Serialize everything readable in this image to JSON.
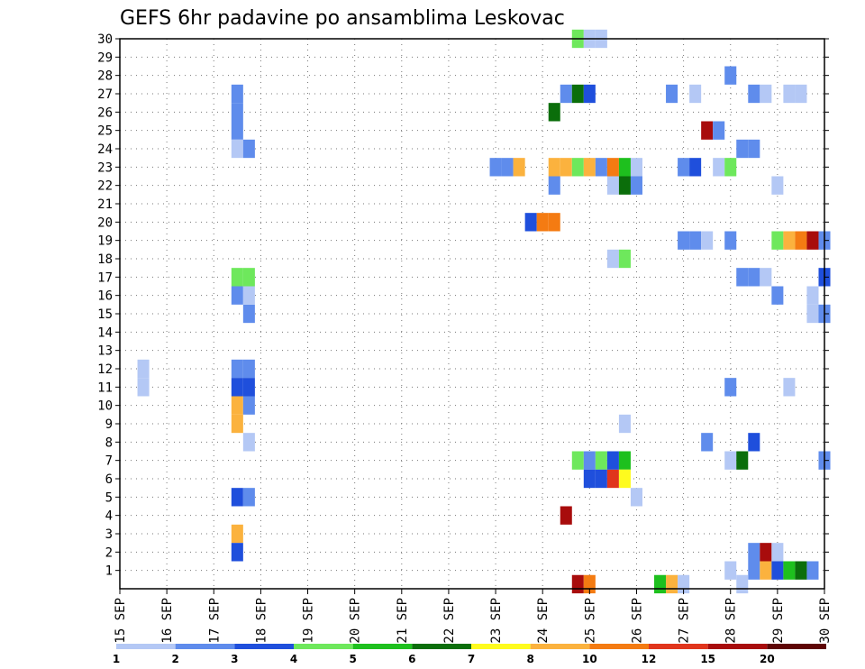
{
  "chart_data": {
    "type": "heatmap",
    "title": "GEFS 6hr padavine po ansamblima Leskovac",
    "xlabel": "",
    "ylabel": "",
    "x_tick_labels": [
      "15 SEP",
      "16 SEP",
      "17 SEP",
      "18 SEP",
      "19 SEP",
      "20 SEP",
      "21 SEP",
      "22 SEP",
      "23 SEP",
      "24 SEP",
      "25 SEP",
      "26 SEP",
      "27 SEP",
      "28 SEP",
      "29 SEP",
      "30 SEP"
    ],
    "y_tick_labels": [
      "1",
      "2",
      "3",
      "4",
      "5",
      "6",
      "7",
      "8",
      "9",
      "10",
      "11",
      "12",
      "13",
      "14",
      "15",
      "16",
      "17",
      "18",
      "19",
      "20",
      "21",
      "22",
      "23",
      "24",
      "25",
      "26",
      "27",
      "28",
      "29",
      "30"
    ],
    "xlim_days": [
      0,
      15
    ],
    "ylim": [
      0,
      30
    ],
    "grid": true,
    "legend": {
      "placement": "bottom",
      "colors": [
        "#b4c8f5",
        "#5f8cec",
        "#1f4fdc",
        "#6ee85c",
        "#1ec01e",
        "#0b6e0b",
        "#fefb1e",
        "#fbb23e",
        "#f47b12",
        "#e0351c",
        "#a80c0c",
        "#5e0505"
      ],
      "labels": [
        "1",
        "2",
        "3",
        "4",
        "5",
        "6",
        "7",
        "8",
        "10",
        "12",
        "15",
        "20"
      ]
    },
    "cells": [
      [
        0.5,
        12,
        0
      ],
      [
        0.5,
        11,
        0
      ],
      [
        2.5,
        16,
        1
      ],
      [
        2.75,
        15,
        1
      ],
      [
        2.5,
        17,
        3
      ],
      [
        2.75,
        17,
        3
      ],
      [
        2.75,
        16,
        0
      ],
      [
        2.5,
        27,
        1
      ],
      [
        2.5,
        26,
        1
      ],
      [
        2.5,
        25,
        1
      ],
      [
        2.5,
        24,
        0
      ],
      [
        2.75,
        24,
        1
      ],
      [
        2.5,
        12,
        1
      ],
      [
        2.75,
        12,
        1
      ],
      [
        2.5,
        11,
        2
      ],
      [
        2.75,
        11,
        2
      ],
      [
        2.5,
        10,
        7
      ],
      [
        2.75,
        10,
        1
      ],
      [
        2.5,
        9,
        7
      ],
      [
        2.75,
        8,
        0
      ],
      [
        2.5,
        5,
        2
      ],
      [
        2.75,
        5,
        1
      ],
      [
        2.5,
        3,
        7
      ],
      [
        2.5,
        2,
        2
      ],
      [
        8,
        23,
        1
      ],
      [
        8.25,
        23,
        1
      ],
      [
        8.5,
        23,
        7
      ],
      [
        8.75,
        20,
        2
      ],
      [
        9,
        20,
        8
      ],
      [
        9.25,
        20,
        8
      ],
      [
        9.25,
        26,
        5
      ],
      [
        9.25,
        23,
        7
      ],
      [
        9.25,
        22,
        1
      ],
      [
        9.5,
        27,
        1
      ],
      [
        9.75,
        27,
        5
      ],
      [
        10,
        27,
        2
      ],
      [
        9.5,
        23,
        7
      ],
      [
        9.75,
        23,
        3
      ],
      [
        10,
        23,
        7
      ],
      [
        9.75,
        30,
        3
      ],
      [
        10,
        30,
        0
      ],
      [
        10.25,
        30,
        0
      ],
      [
        9.5,
        4,
        10
      ],
      [
        9.75,
        7,
        3
      ],
      [
        10,
        7,
        1
      ],
      [
        10.25,
        7,
        3
      ],
      [
        10,
        6,
        2
      ],
      [
        10.25,
        6,
        2
      ],
      [
        10.5,
        6,
        9
      ],
      [
        9.75,
        0.25,
        10
      ],
      [
        10,
        0.25,
        8
      ],
      [
        10.25,
        23,
        1
      ],
      [
        10.5,
        23,
        8
      ],
      [
        10.75,
        23,
        4
      ],
      [
        11,
        23,
        0
      ],
      [
        10.5,
        22,
        0
      ],
      [
        10.75,
        22,
        5
      ],
      [
        11,
        22,
        1
      ],
      [
        10.5,
        18,
        0
      ],
      [
        10.75,
        18,
        3
      ],
      [
        10.5,
        7,
        2
      ],
      [
        10.75,
        7,
        4
      ],
      [
        10.75,
        6,
        6
      ],
      [
        10.75,
        9,
        0
      ],
      [
        11,
        5,
        0
      ],
      [
        11.5,
        0.25,
        4
      ],
      [
        11.75,
        0.25,
        7
      ],
      [
        12,
        0.25,
        0
      ],
      [
        11.75,
        27,
        1
      ],
      [
        12.25,
        27,
        0
      ],
      [
        12,
        23,
        1
      ],
      [
        12.25,
        23,
        2
      ],
      [
        12,
        19,
        1
      ],
      [
        12.25,
        19,
        1
      ],
      [
        12.5,
        19,
        0
      ],
      [
        12.5,
        25,
        10
      ],
      [
        12.75,
        25,
        1
      ],
      [
        12.5,
        8,
        1
      ],
      [
        12.75,
        23,
        0
      ],
      [
        13,
        23,
        3
      ],
      [
        13,
        28,
        1
      ],
      [
        13,
        19,
        1
      ],
      [
        13.25,
        17,
        1
      ],
      [
        13.5,
        17,
        1
      ],
      [
        13,
        11,
        1
      ],
      [
        13,
        7,
        0
      ],
      [
        13.25,
        7,
        5
      ],
      [
        13,
        1,
        0
      ],
      [
        13.25,
        24,
        1
      ],
      [
        13.5,
        24,
        1
      ],
      [
        13.5,
        27,
        1
      ],
      [
        13.75,
        27,
        0
      ],
      [
        13.5,
        8,
        2
      ],
      [
        13.5,
        2,
        1
      ],
      [
        13.75,
        2,
        10
      ],
      [
        14,
        2,
        0
      ],
      [
        13.5,
        1,
        1
      ],
      [
        13.75,
        1,
        7
      ],
      [
        14,
        1,
        2
      ],
      [
        14.25,
        1,
        4
      ],
      [
        14.5,
        1,
        5
      ],
      [
        14.75,
        1,
        1
      ],
      [
        13.75,
        17,
        0
      ],
      [
        14,
        16,
        1
      ],
      [
        14,
        19,
        3
      ],
      [
        14.25,
        19,
        7
      ],
      [
        14.5,
        19,
        8
      ],
      [
        14.75,
        19,
        10
      ],
      [
        14,
        22,
        0
      ],
      [
        14.25,
        11,
        0
      ],
      [
        14.25,
        27,
        0
      ],
      [
        14.5,
        27,
        0
      ],
      [
        14.75,
        16,
        0
      ],
      [
        14.75,
        15,
        0
      ],
      [
        15,
        15,
        1
      ],
      [
        15,
        19,
        1
      ],
      [
        15,
        17,
        2
      ],
      [
        15,
        7,
        1
      ],
      [
        13.25,
        0.25,
        0
      ]
    ]
  }
}
